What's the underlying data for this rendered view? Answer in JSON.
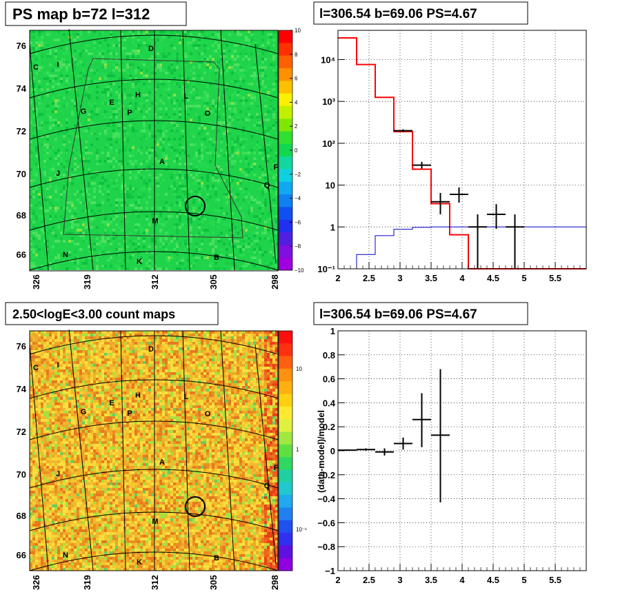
{
  "colors": {
    "model_red": "#ff0000",
    "model_blue": "#0000cc",
    "data_black": "#000000"
  },
  "skymaps": [
    {
      "title": "PS map b=72 l=312",
      "kind": "ps",
      "y_ticks": [
        "76",
        "74",
        "72",
        "70",
        "68",
        "66"
      ],
      "x_ticks": [
        "326",
        "319",
        "312",
        "305",
        "298"
      ],
      "palette_ticks": [
        "10",
        "8",
        "6",
        "4",
        "2",
        "0",
        "−2",
        "−4",
        "−6",
        "−8",
        "−10"
      ],
      "sources": [
        "D",
        "C",
        "I",
        "H",
        "L",
        "E",
        "G",
        "P",
        "O",
        "A",
        "J",
        "F",
        "Q",
        "M",
        "N",
        "K",
        "B"
      ]
    },
    {
      "title": "2.50<logE<3.00 count maps",
      "kind": "count",
      "y_ticks": [
        "76",
        "74",
        "72",
        "70",
        "68",
        "66"
      ],
      "x_ticks": [
        "326",
        "319",
        "312",
        "305",
        "298"
      ],
      "palette_ticks": [
        "10",
        "1",
        "10⁻¹"
      ],
      "sources": [
        "D",
        "C",
        "I",
        "H",
        "L",
        "E",
        "G",
        "P",
        "O",
        "A",
        "J",
        "F",
        "Q",
        "M",
        "N",
        "K",
        "B"
      ]
    }
  ],
  "chart_data": [
    {
      "type": "line",
      "title": "l=306.54 b=69.06 PS=4.67",
      "xlabel": "",
      "ylabel": "",
      "xlim": [
        2,
        6
      ],
      "ylim": [
        0.1,
        50000
      ],
      "yscale": "log",
      "grid": true,
      "x_tick_labels": [
        "2",
        "2.5",
        "3",
        "3.5",
        "4",
        "4.5",
        "5",
        "5.5"
      ],
      "y_tick_labels": [
        "10⁻¹",
        "1",
        "10",
        "10²",
        "10³",
        "10⁴"
      ],
      "bin_edges": [
        2.0,
        2.3,
        2.6,
        2.9,
        3.2,
        3.5,
        3.8,
        4.1,
        4.4,
        4.7,
        5.0,
        6.0
      ],
      "series": [
        {
          "role": "background model (red)",
          "values": [
            33000,
            7600,
            1250,
            190,
            24,
            3.6,
            0.65,
            0.1,
            0.1,
            0.1,
            0.1
          ]
        },
        {
          "role": "source model (blue)",
          "values": [
            0.05,
            0.22,
            0.62,
            0.88,
            0.98,
            1.0,
            1.0,
            1.0,
            1.0,
            1.0,
            1.0
          ]
        }
      ],
      "data_points": [
        {
          "x": 3.05,
          "y": 200,
          "xerr": 0.15,
          "ylo": 185,
          "yhi": 215
        },
        {
          "x": 3.35,
          "y": 30,
          "xerr": 0.15,
          "ylo": 25,
          "yhi": 36
        },
        {
          "x": 3.65,
          "y": 4.0,
          "xerr": 0.15,
          "ylo": 2.0,
          "yhi": 6.5
        },
        {
          "x": 3.95,
          "y": 6.0,
          "xerr": 0.15,
          "ylo": 3.8,
          "yhi": 8.8
        },
        {
          "x": 4.25,
          "y": 1.0,
          "xerr": 0.15,
          "ylo": 0.1,
          "yhi": 2.0
        },
        {
          "x": 4.55,
          "y": 2.0,
          "xerr": 0.15,
          "ylo": 0.9,
          "yhi": 3.5
        },
        {
          "x": 4.85,
          "y": 1.0,
          "xerr": 0.15,
          "ylo": 0.1,
          "yhi": 2.0
        }
      ]
    },
    {
      "type": "scatter",
      "title": "l=306.54 b=69.06 PS=4.67",
      "xlabel": "",
      "ylabel": "(data-model)/model",
      "xlim": [
        2,
        6
      ],
      "ylim": [
        -1,
        1
      ],
      "grid": true,
      "x_tick_labels": [
        "2",
        "2.5",
        "3",
        "3.5",
        "4",
        "4.5",
        "5",
        "5.5"
      ],
      "y_tick_labels": [
        "1",
        "0.8",
        "0.6",
        "0.4",
        "0.2",
        "0",
        "−0.2",
        "−0.4",
        "−0.6",
        "−0.8",
        "−1"
      ],
      "data_points": [
        {
          "x": 2.15,
          "y": 0.005,
          "xerr": 0.15,
          "ylo": 0.0,
          "yhi": 0.012
        },
        {
          "x": 2.45,
          "y": 0.01,
          "xerr": 0.15,
          "ylo": 0.0,
          "yhi": 0.02
        },
        {
          "x": 2.75,
          "y": -0.01,
          "xerr": 0.15,
          "ylo": -0.04,
          "yhi": 0.02
        },
        {
          "x": 3.05,
          "y": 0.06,
          "xerr": 0.15,
          "ylo": 0.01,
          "yhi": 0.11
        },
        {
          "x": 3.35,
          "y": 0.26,
          "xerr": 0.15,
          "ylo": 0.03,
          "yhi": 0.48
        },
        {
          "x": 3.65,
          "y": 0.13,
          "xerr": 0.15,
          "ylo": -0.43,
          "yhi": 0.68
        }
      ]
    }
  ]
}
